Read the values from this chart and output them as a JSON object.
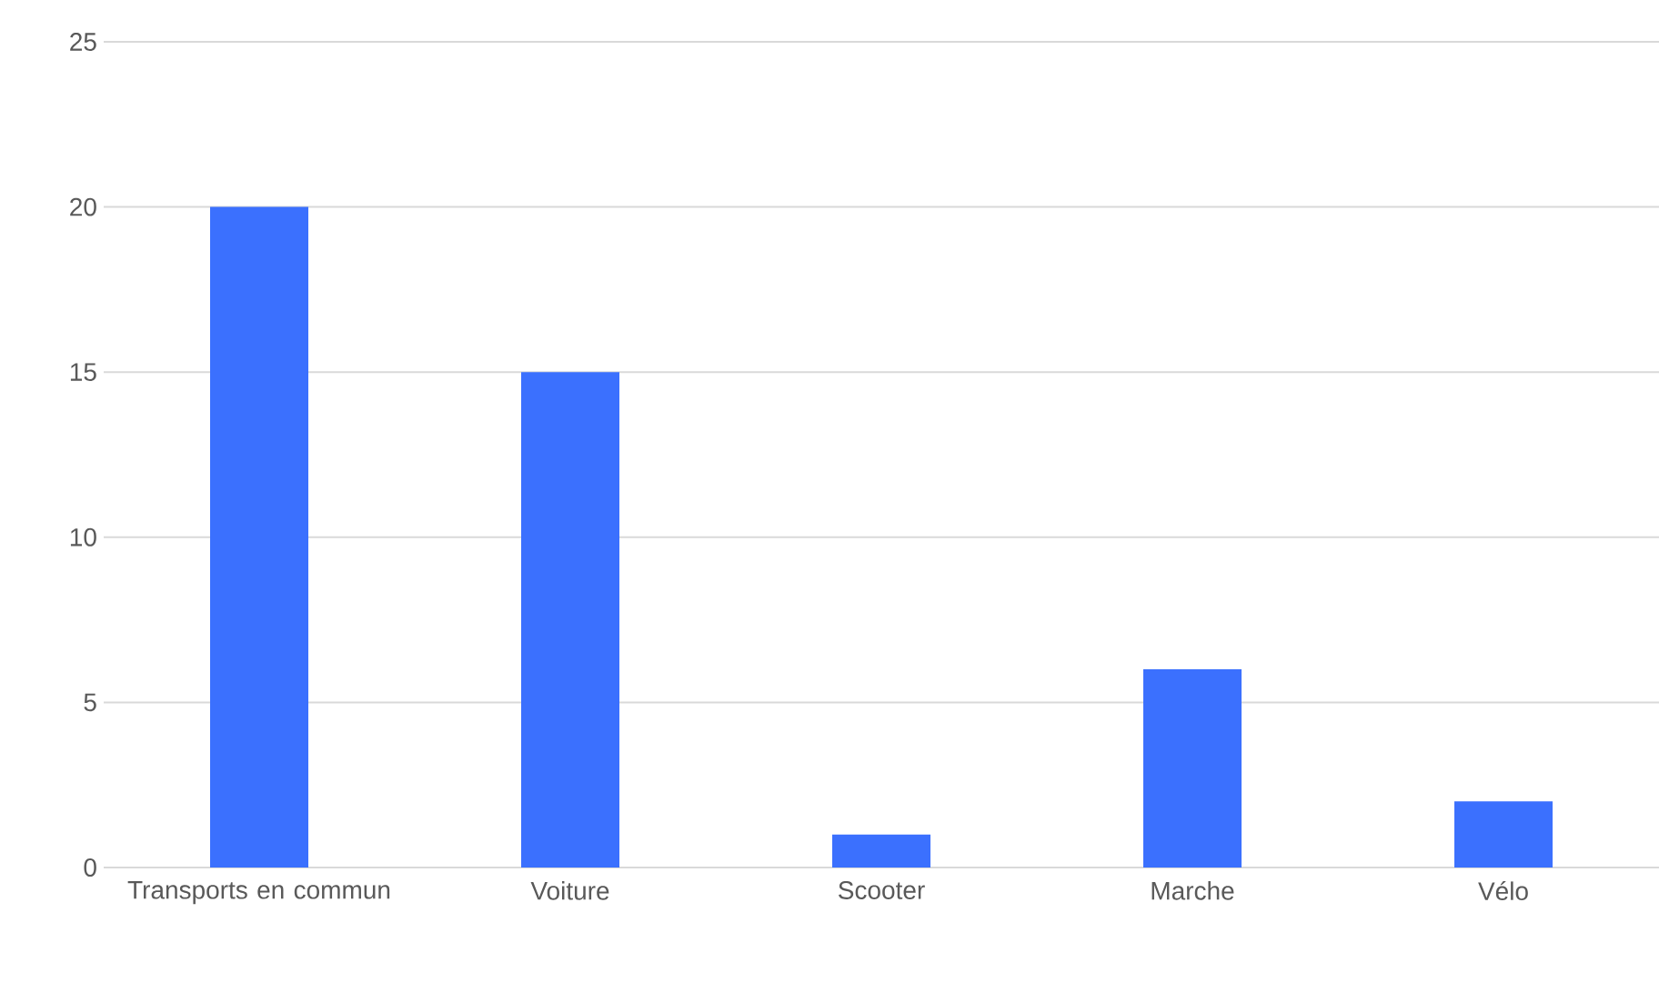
{
  "chart_data": {
    "type": "bar",
    "categories": [
      "Transports en commun",
      "Voiture",
      "Scooter",
      "Marche",
      "Vélo"
    ],
    "values": [
      20,
      15,
      1,
      6,
      2
    ],
    "color": "#3b70fe",
    "ylim": [
      0,
      25
    ],
    "yticks": [
      0,
      5,
      10,
      15,
      20,
      25
    ],
    "grid": "y"
  }
}
